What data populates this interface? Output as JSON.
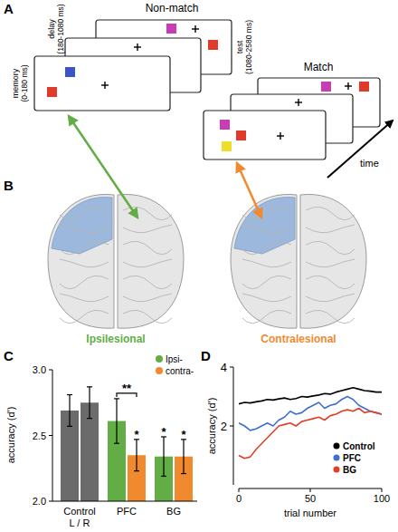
{
  "panels": [
    "A",
    "B",
    "C",
    "D"
  ],
  "diagram": {
    "conditions": [
      "Non-match",
      "Match"
    ],
    "phases": [
      {
        "name": "memory",
        "time": "(0-180 ms)"
      },
      {
        "name": "delay",
        "time": "(180-1080 ms)"
      },
      {
        "name": "test",
        "time": "(1080-2580 ms)"
      }
    ],
    "time_axis": "time",
    "hemispheres": [
      {
        "label": "Ipsilesional",
        "color": "#62ad45"
      },
      {
        "label": "Contralesional",
        "color": "#f18a2e"
      }
    ]
  },
  "chart_data": [
    {
      "type": "bar",
      "categories": [
        "Control",
        "PFC",
        "BG"
      ],
      "y_label": "accuracy (d')",
      "ylim": [
        2.0,
        3.0
      ],
      "yticks": [
        {
          "value": 2,
          "label": "2.0"
        },
        {
          "value": 2.5,
          "label": "2.5"
        },
        {
          "value": 3,
          "label": "3.0"
        }
      ],
      "legend": "top-right",
      "series": [
        {
          "name": "Ipsi-",
          "color": "#62ad45",
          "colors": [
            "#6b6b6b",
            "#62ad45",
            "#62ad45"
          ],
          "values": [
            2.69,
            2.61,
            2.34
          ],
          "errors": [
            0.12,
            0.17,
            0.15
          ]
        },
        {
          "name": "contra-",
          "color": "#f18a2e",
          "colors": [
            "#6b6b6b",
            "#f18a2e",
            "#f18a2e"
          ],
          "values": [
            2.75,
            2.35,
            2.34
          ],
          "errors": [
            0.12,
            0.12,
            0.13
          ]
        }
      ],
      "annotations": [
        {
          "text": "L / R",
          "category": 0
        },
        {
          "text": "**",
          "category": 1,
          "series": [
            0,
            1
          ]
        },
        {
          "text": "*",
          "category": 1,
          "series": [
            1
          ]
        },
        {
          "text": "*",
          "category": 2,
          "series": [
            0
          ]
        },
        {
          "text": "*",
          "category": 2,
          "series": [
            1
          ]
        }
      ]
    },
    {
      "type": "line",
      "x": [
        0,
        4,
        8,
        12,
        16,
        20,
        24,
        28,
        32,
        36,
        40,
        44,
        48,
        52,
        56,
        60,
        64,
        68,
        72,
        76,
        80,
        84,
        88,
        92,
        96,
        100
      ],
      "x_label": "trial number",
      "y_label": "accuracy (d')",
      "xlim": [
        0,
        100
      ],
      "xticks": [
        0,
        50,
        100
      ],
      "ylim": [
        0,
        4
      ],
      "yticks": [
        2,
        4
      ],
      "legend": "bottom-right",
      "series": [
        {
          "name": "Control",
          "color": "#000000",
          "values": [
            2.75,
            2.8,
            2.78,
            2.82,
            2.85,
            2.9,
            2.88,
            2.92,
            2.95,
            2.9,
            2.93,
            3.0,
            2.98,
            3.02,
            3.05,
            3.1,
            3.08,
            3.15,
            3.2,
            3.25,
            3.3,
            3.25,
            3.2,
            3.18,
            3.15,
            3.15
          ]
        },
        {
          "name": "PFC",
          "color": "#3f6fd1",
          "values": [
            2.1,
            2.0,
            1.85,
            1.9,
            2.0,
            2.1,
            2.0,
            2.2,
            2.3,
            2.5,
            2.4,
            2.45,
            2.6,
            2.7,
            2.8,
            2.6,
            2.7,
            2.75,
            2.9,
            3.0,
            2.9,
            2.7,
            2.6,
            2.5,
            2.45,
            2.4
          ]
        },
        {
          "name": "BG",
          "color": "#e0402a",
          "values": [
            1.0,
            0.9,
            0.95,
            1.2,
            1.4,
            1.6,
            1.8,
            2.0,
            2.05,
            2.1,
            2.0,
            2.15,
            2.2,
            2.25,
            2.3,
            2.2,
            2.35,
            2.4,
            2.5,
            2.55,
            2.5,
            2.6,
            2.45,
            2.5,
            2.45,
            2.4
          ]
        }
      ]
    }
  ]
}
